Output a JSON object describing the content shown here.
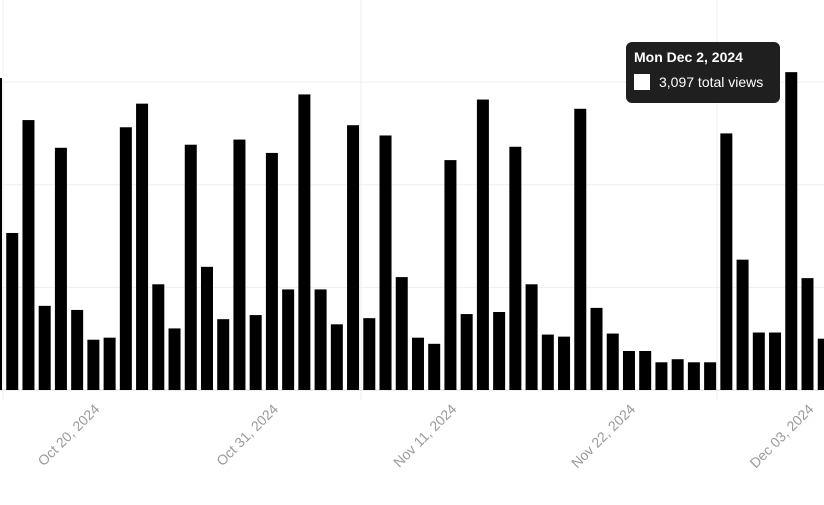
{
  "chart_data": {
    "type": "bar",
    "color": "#000000",
    "categories": [
      null,
      null,
      null,
      null,
      null,
      null,
      "Oct 20, 2024",
      null,
      null,
      null,
      null,
      null,
      null,
      null,
      null,
      null,
      null,
      "Oct 31, 2024",
      null,
      null,
      null,
      null,
      null,
      null,
      null,
      null,
      null,
      null,
      "Nov 11, 2024",
      null,
      null,
      null,
      null,
      null,
      null,
      null,
      null,
      null,
      null,
      "Nov 22, 2024",
      null,
      null,
      null,
      null,
      null,
      null,
      null,
      null,
      null,
      null,
      "Dec 03, 2024",
      null
    ],
    "values": [
      3040,
      1530,
      2630,
      820,
      2360,
      780,
      490,
      510,
      2560,
      2790,
      1030,
      600,
      2390,
      1200,
      690,
      2440,
      730,
      2310,
      980,
      2880,
      980,
      640,
      2580,
      700,
      2480,
      1100,
      510,
      450,
      2240,
      740,
      2830,
      760,
      2370,
      1030,
      540,
      520,
      2740,
      800,
      550,
      380,
      380,
      270,
      300,
      270,
      270,
      2500,
      1270,
      560,
      560,
      3097,
      1090,
      500
    ],
    "ylim": [
      0,
      3800
    ],
    "yticks": [
      0,
      1000,
      2000,
      3000
    ],
    "grid": true,
    "tooltip": {
      "title": "Mon Dec 2, 2024",
      "label": "3,097 total views"
    }
  }
}
